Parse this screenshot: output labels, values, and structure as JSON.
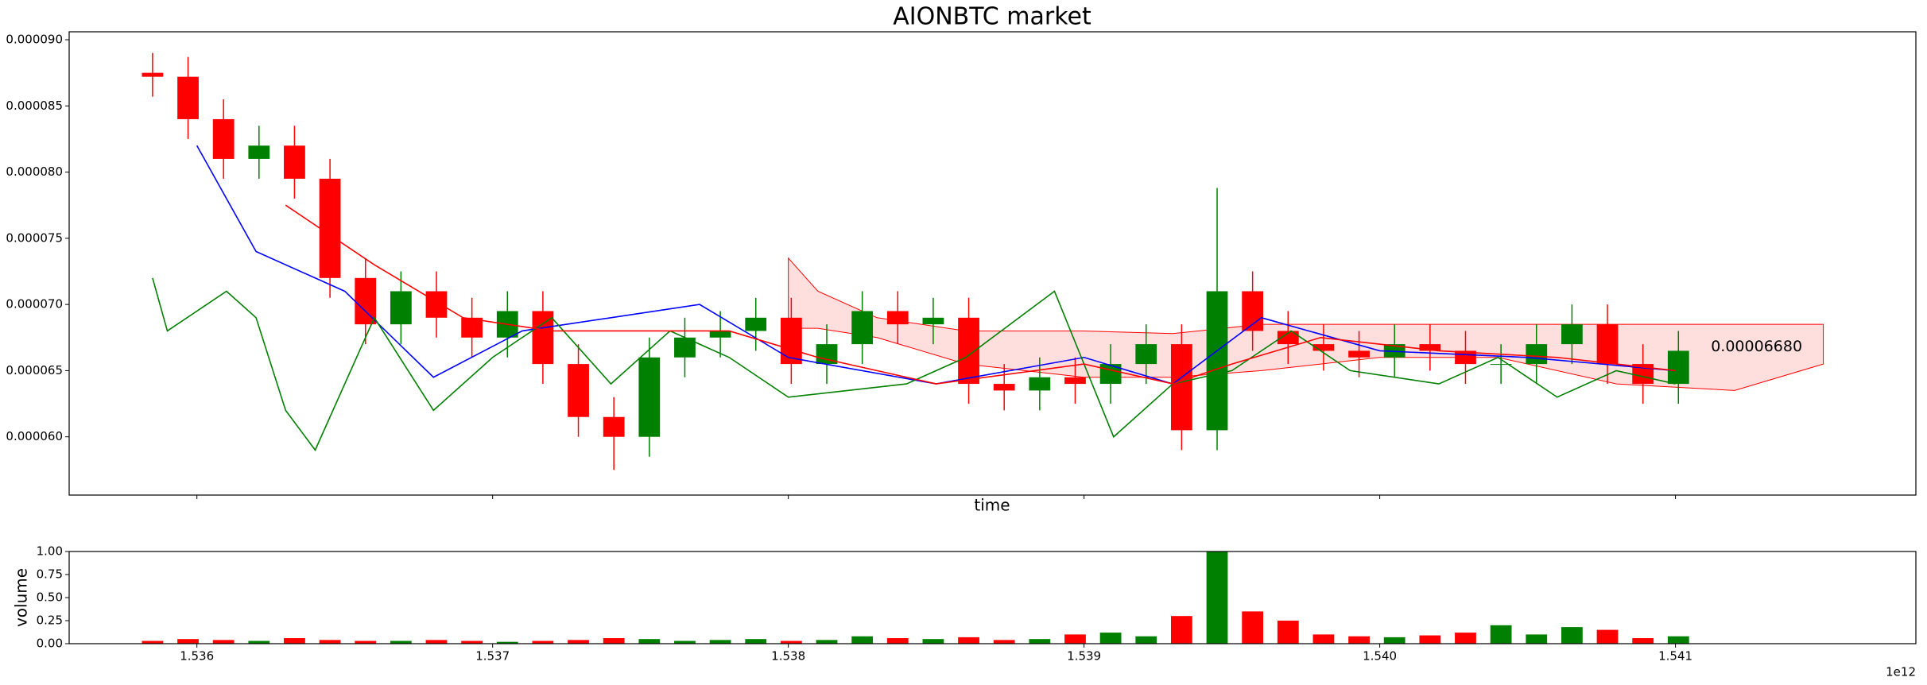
{
  "chart_data": [
    {
      "type": "candlestick",
      "title": "AIONBTC market",
      "xlabel": "time",
      "up_color": "#008000",
      "down_color": "#ff0000",
      "x": [
        1.53585,
        1.53597,
        1.53609,
        1.53621,
        1.53633,
        1.53645,
        1.53657,
        1.53669,
        1.53681,
        1.53693,
        1.53705,
        1.53717,
        1.53729,
        1.53741,
        1.53753,
        1.53765,
        1.53777,
        1.53789,
        1.53801,
        1.53813,
        1.53825,
        1.53837,
        1.53849,
        1.53861,
        1.53873,
        1.53885,
        1.53897,
        1.53909,
        1.53921,
        1.53933,
        1.53945,
        1.53957,
        1.53969,
        1.53981,
        1.53993,
        1.54005,
        1.54017,
        1.54029,
        1.54041,
        1.54053,
        1.54065,
        1.54077,
        1.54089,
        1.54101
      ],
      "open": [
        8.75e-05,
        8.72e-05,
        8.4e-05,
        8.1e-05,
        8.2e-05,
        7.95e-05,
        7.2e-05,
        6.85e-05,
        7.1e-05,
        6.9e-05,
        6.75e-05,
        6.95e-05,
        6.55e-05,
        6.15e-05,
        6e-05,
        6.6e-05,
        6.75e-05,
        6.8e-05,
        6.9e-05,
        6.55e-05,
        6.7e-05,
        6.95e-05,
        6.85e-05,
        6.9e-05,
        6.4e-05,
        6.35e-05,
        6.45e-05,
        6.4e-05,
        6.55e-05,
        6.7e-05,
        6.05e-05,
        7.1e-05,
        6.8e-05,
        6.7e-05,
        6.65e-05,
        6.6e-05,
        6.7e-05,
        6.65e-05,
        6.55e-05,
        6.55e-05,
        6.7e-05,
        6.85e-05,
        6.55e-05,
        6.4e-05
      ],
      "high": [
        8.9e-05,
        8.87e-05,
        8.55e-05,
        8.35e-05,
        8.35e-05,
        8.1e-05,
        7.35e-05,
        7.25e-05,
        7.25e-05,
        7.05e-05,
        7.1e-05,
        7.1e-05,
        6.7e-05,
        6.3e-05,
        6.75e-05,
        6.9e-05,
        6.95e-05,
        7.05e-05,
        7.05e-05,
        6.85e-05,
        7.1e-05,
        7.1e-05,
        7.05e-05,
        7.05e-05,
        6.55e-05,
        6.6e-05,
        6.6e-05,
        6.7e-05,
        6.85e-05,
        6.85e-05,
        7.88e-05,
        7.25e-05,
        6.95e-05,
        6.85e-05,
        6.8e-05,
        6.85e-05,
        6.85e-05,
        6.8e-05,
        6.7e-05,
        6.85e-05,
        7e-05,
        7e-05,
        6.7e-05,
        6.8e-05
      ],
      "low": [
        8.57e-05,
        8.25e-05,
        7.95e-05,
        7.95e-05,
        7.8e-05,
        7.05e-05,
        6.7e-05,
        6.7e-05,
        6.75e-05,
        6.6e-05,
        6.6e-05,
        6.4e-05,
        6e-05,
        5.75e-05,
        5.85e-05,
        6.45e-05,
        6.6e-05,
        6.65e-05,
        6.4e-05,
        6.4e-05,
        6.55e-05,
        6.7e-05,
        6.7e-05,
        6.25e-05,
        6.2e-05,
        6.2e-05,
        6.25e-05,
        6.25e-05,
        6.4e-05,
        5.9e-05,
        5.9e-05,
        6.65e-05,
        6.55e-05,
        6.5e-05,
        6.45e-05,
        6.45e-05,
        6.5e-05,
        6.4e-05,
        6.4e-05,
        6.4e-05,
        6.55e-05,
        6.4e-05,
        6.25e-05,
        6.25e-05
      ],
      "close": [
        8.72e-05,
        8.4e-05,
        8.1e-05,
        8.2e-05,
        7.95e-05,
        7.2e-05,
        6.85e-05,
        7.1e-05,
        6.9e-05,
        6.75e-05,
        6.95e-05,
        6.55e-05,
        6.15e-05,
        6e-05,
        6.6e-05,
        6.75e-05,
        6.8e-05,
        6.9e-05,
        6.55e-05,
        6.7e-05,
        6.95e-05,
        6.85e-05,
        6.9e-05,
        6.4e-05,
        6.35e-05,
        6.45e-05,
        6.4e-05,
        6.55e-05,
        6.7e-05,
        6.05e-05,
        7.1e-05,
        6.8e-05,
        6.7e-05,
        6.65e-05,
        6.6e-05,
        6.7e-05,
        6.65e-05,
        6.55e-05,
        6.55e-05,
        6.7e-05,
        6.85e-05,
        6.55e-05,
        6.4e-05,
        6.65e-05
      ],
      "lines": [
        {
          "color": "#0000ff",
          "x": [
            1.536,
            1.5362,
            1.5365,
            1.5368,
            1.5371,
            1.5374,
            1.5377,
            1.538,
            1.5385,
            1.539,
            1.5393,
            1.5396,
            1.54,
            1.5405,
            1.541
          ],
          "values": [
            8.2e-05,
            7.4e-05,
            7.1e-05,
            6.45e-05,
            6.8e-05,
            6.9e-05,
            7e-05,
            6.6e-05,
            6.4e-05,
            6.6e-05,
            6.4e-05,
            6.9e-05,
            6.65e-05,
            6.6e-05,
            6.5e-05
          ]
        },
        {
          "color": "#008000",
          "x": [
            1.53585,
            1.5359,
            1.5361,
            1.5362,
            1.5363,
            1.5364,
            1.5366,
            1.5368,
            1.537,
            1.5372,
            1.5374,
            1.5376,
            1.5378,
            1.538,
            1.5384,
            1.5386,
            1.5389,
            1.5391,
            1.5393,
            1.5395,
            1.5397,
            1.5399,
            1.5402,
            1.5404,
            1.5406,
            1.5408,
            1.541
          ],
          "values": [
            7.2e-05,
            6.8e-05,
            7.1e-05,
            6.9e-05,
            6.2e-05,
            5.9e-05,
            6.9e-05,
            6.2e-05,
            6.6e-05,
            6.9e-05,
            6.4e-05,
            6.8e-05,
            6.6e-05,
            6.3e-05,
            6.4e-05,
            6.6e-05,
            7.1e-05,
            6e-05,
            6.4e-05,
            6.5e-05,
            6.8e-05,
            6.5e-05,
            6.4e-05,
            6.6e-05,
            6.3e-05,
            6.5e-05,
            6.4e-05
          ]
        },
        {
          "color": "#ff0000",
          "x": [
            1.5363,
            1.5366,
            1.5369,
            1.5372,
            1.5375,
            1.5378,
            1.5381,
            1.5385,
            1.539,
            1.5393,
            1.5395,
            1.5398,
            1.5402,
            1.5406,
            1.541
          ],
          "values": [
            7.75e-05,
            7.3e-05,
            6.9e-05,
            6.8e-05,
            6.8e-05,
            6.8e-05,
            6.6e-05,
            6.4e-05,
            6.55e-05,
            6.4e-05,
            6.55e-05,
            6.75e-05,
            6.65e-05,
            6.6e-05,
            6.5e-05
          ]
        }
      ],
      "cloud": {
        "color": "#ff0000",
        "x": [
          1.538,
          1.5381,
          1.5383,
          1.5386,
          1.539,
          1.5393,
          1.5396,
          1.54,
          1.5404,
          1.5408,
          1.5412,
          1.5415
        ],
        "upper": [
          7.35e-05,
          7.1e-05,
          6.9e-05,
          6.8e-05,
          6.8e-05,
          6.78e-05,
          6.85e-05,
          6.85e-05,
          6.85e-05,
          6.85e-05,
          6.85e-05,
          6.85e-05
        ],
        "lower": [
          6.82e-05,
          6.82e-05,
          6.75e-05,
          6.55e-05,
          6.45e-05,
          6.45e-05,
          6.5e-05,
          6.6e-05,
          6.6e-05,
          6.4e-05,
          6.35e-05,
          6.55e-05
        ]
      },
      "annotation": {
        "text": "0.00006680",
        "x": 1.54112,
        "y": 6.68e-05
      },
      "xlim": [
        1.535568,
        1.541813
      ],
      "ylim": [
        5.56e-05,
        9.06e-05
      ],
      "xticks": [
        1.536,
        1.537,
        1.538,
        1.539,
        1.54,
        1.541
      ],
      "yticks": [
        {
          "value": 6e-05,
          "label": "0.000060"
        },
        6.5e-05,
        {
          "value": 7e-05,
          "label": "0.000070"
        },
        7.5e-05,
        {
          "value": 8e-05,
          "label": "0.000080"
        },
        8.5e-05,
        {
          "value": 9e-05,
          "label": "0.000090"
        }
      ]
    },
    {
      "type": "bar",
      "ylabel": "volume",
      "offset_text": "1e12",
      "x": [
        1.53585,
        1.53597,
        1.53609,
        1.53621,
        1.53633,
        1.53645,
        1.53657,
        1.53669,
        1.53681,
        1.53693,
        1.53705,
        1.53717,
        1.53729,
        1.53741,
        1.53753,
        1.53765,
        1.53777,
        1.53789,
        1.53801,
        1.53813,
        1.53825,
        1.53837,
        1.53849,
        1.53861,
        1.53873,
        1.53885,
        1.53897,
        1.53909,
        1.53921,
        1.53933,
        1.53945,
        1.53957,
        1.53969,
        1.53981,
        1.53993,
        1.54005,
        1.54017,
        1.54029,
        1.54041,
        1.54053,
        1.54065,
        1.54077,
        1.54089,
        1.54101
      ],
      "values": [
        0.03,
        0.05,
        0.04,
        0.03,
        0.06,
        0.04,
        0.03,
        0.03,
        0.04,
        0.03,
        0.02,
        0.03,
        0.04,
        0.06,
        0.05,
        0.03,
        0.04,
        0.05,
        0.03,
        0.04,
        0.08,
        0.06,
        0.05,
        0.07,
        0.04,
        0.05,
        0.1,
        0.12,
        0.08,
        0.3,
        1.0,
        0.35,
        0.25,
        0.1,
        0.08,
        0.07,
        0.09,
        0.12,
        0.2,
        0.1,
        0.18,
        0.15,
        0.06,
        0.08
      ],
      "xlim": [
        1.535568,
        1.541813
      ],
      "ylim": [
        0,
        1
      ],
      "xticks": [
        {
          "value": 1.536,
          "label": "1.536"
        },
        {
          "value": 1.537,
          "label": "1.537"
        },
        {
          "value": 1.538,
          "label": "1.538"
        },
        {
          "value": 1.539,
          "label": "1.539"
        },
        {
          "value": 1.54,
          "label": "1.540"
        },
        {
          "value": 1.541,
          "label": "1.541"
        }
      ],
      "yticks": [
        {
          "value": 0,
          "label": "0.00"
        },
        0.25,
        {
          "value": 0.5,
          "label": "0.50"
        },
        0.75,
        {
          "value": 1,
          "label": "1.00"
        }
      ]
    }
  ]
}
